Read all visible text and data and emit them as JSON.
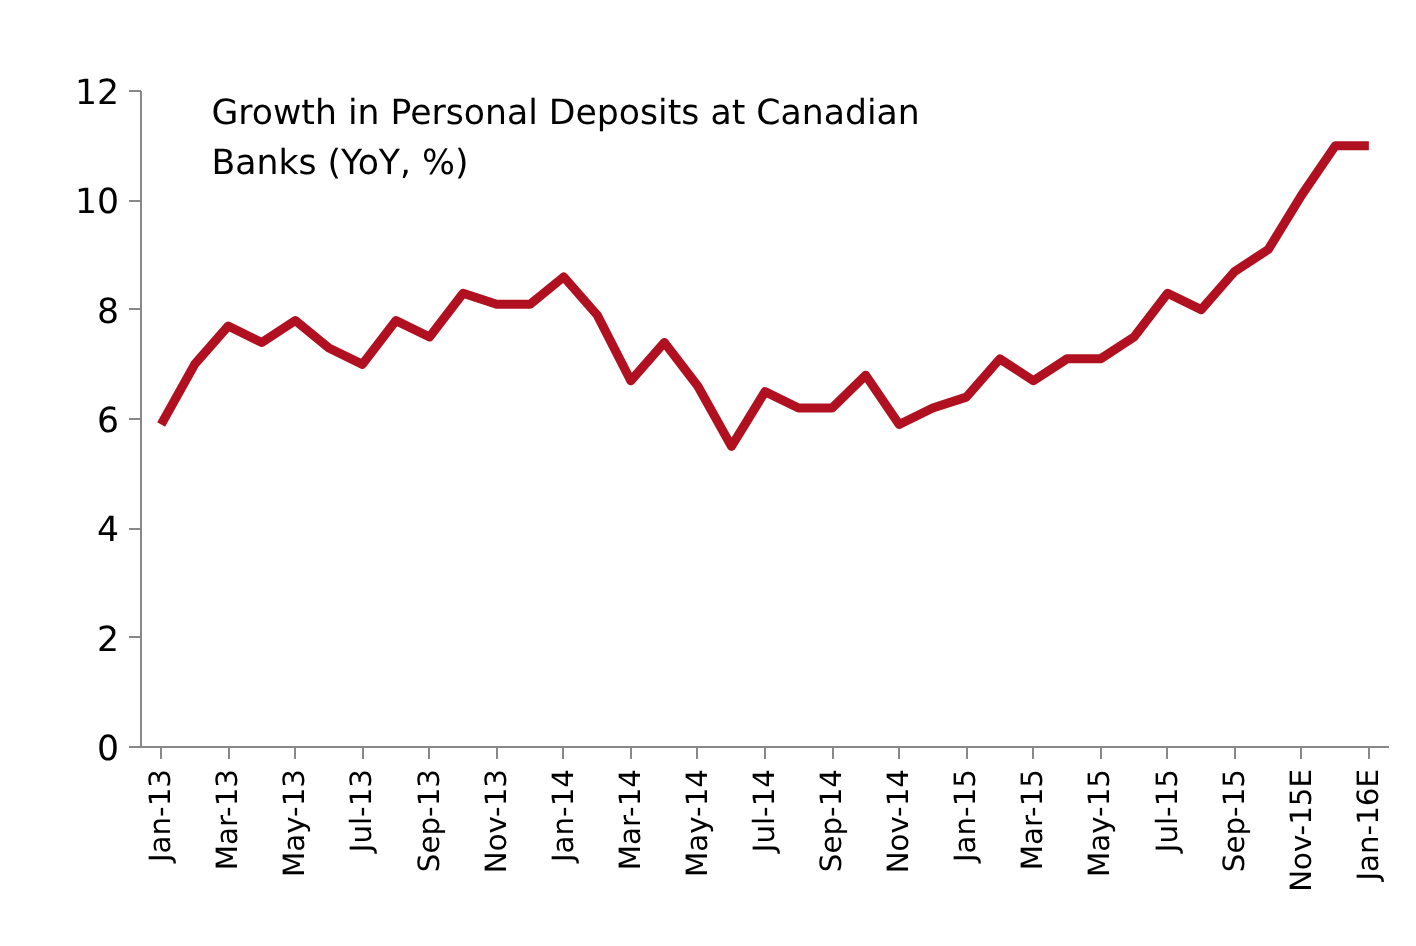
{
  "chart_data": {
    "type": "line",
    "title": "Growth in Personal Deposits at Canadian\nBanks (YoY, %)",
    "categories": [
      "Jan-13",
      null,
      "Mar-13",
      null,
      "May-13",
      null,
      "Jul-13",
      null,
      "Sep-13",
      null,
      "Nov-13",
      null,
      "Jan-14",
      null,
      "Mar-14",
      null,
      "May-14",
      null,
      "Jul-14",
      null,
      "Sep-14",
      null,
      "Nov-14",
      null,
      "Jan-15",
      null,
      "Mar-15",
      null,
      "May-15",
      null,
      "Jul-15",
      null,
      "Sep-15",
      null,
      "Nov-15E",
      null,
      "Jan-16E"
    ],
    "series": [
      {
        "color": "#b0101f",
        "values": [
          5.9,
          7.0,
          7.7,
          7.4,
          7.8,
          7.3,
          7.0,
          7.8,
          7.5,
          8.3,
          8.1,
          8.1,
          8.6,
          7.9,
          6.7,
          7.4,
          6.6,
          5.5,
          6.5,
          6.2,
          6.2,
          6.8,
          5.9,
          6.2,
          6.4,
          7.1,
          6.7,
          7.1,
          7.1,
          7.5,
          8.3,
          8.0,
          8.7,
          9.1,
          10.1,
          11.0,
          11.0
        ]
      }
    ],
    "ylim": [
      0,
      12
    ],
    "yticks": [
      0,
      2,
      4,
      6,
      8,
      10,
      12
    ],
    "grid": false,
    "marker": "none",
    "line_style": "solid"
  }
}
